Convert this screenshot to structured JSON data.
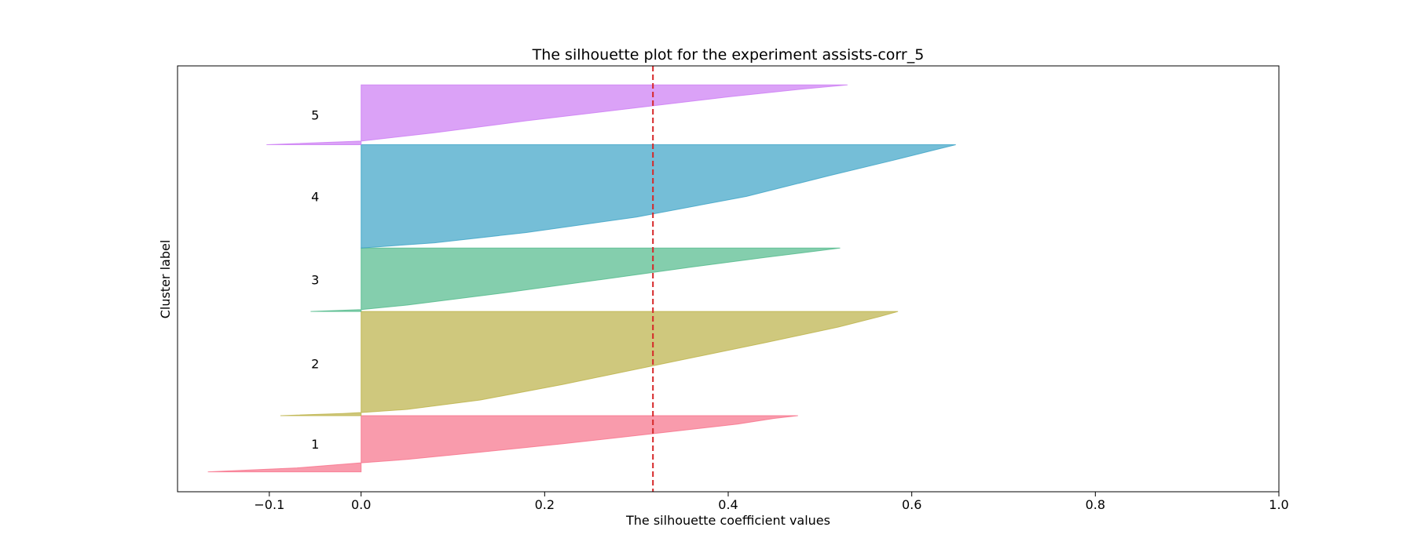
{
  "chart_data": {
    "type": "area",
    "title": "The silhouette plot for the experiment assists-corr_5",
    "xlabel": "The silhouette coefficient values",
    "ylabel": "Cluster label",
    "xlim": [
      -0.2,
      1.0
    ],
    "xticks": [
      -0.1,
      0.0,
      0.2,
      0.4,
      0.6,
      0.8,
      1.0
    ],
    "xtick_labels": [
      "−0.1",
      "0.0",
      "0.2",
      "0.4",
      "0.6",
      "0.8",
      "1.0"
    ],
    "ylim": [
      0,
      470
    ],
    "average_silhouette": 0.318,
    "average_line_color": "#d62728",
    "grid": false,
    "clusters": [
      {
        "label": "1",
        "color": "#f77189",
        "y_lower": 22,
        "y_upper": 84,
        "profile": [
          [
            0.0,
            -0.167
          ],
          [
            0.07,
            -0.07
          ],
          [
            0.16,
            0.0
          ],
          [
            0.22,
            0.05
          ],
          [
            0.35,
            0.13
          ],
          [
            0.5,
            0.22
          ],
          [
            0.7,
            0.33
          ],
          [
            0.85,
            0.41
          ],
          [
            0.95,
            0.45
          ],
          [
            1.0,
            0.476
          ]
        ]
      },
      {
        "label": "2",
        "color": "#bbb146",
        "y_lower": 84,
        "y_upper": 199,
        "profile": [
          [
            0.0,
            -0.088
          ],
          [
            0.02,
            -0.02
          ],
          [
            0.03,
            0.0
          ],
          [
            0.06,
            0.05
          ],
          [
            0.15,
            0.13
          ],
          [
            0.3,
            0.22
          ],
          [
            0.5,
            0.33
          ],
          [
            0.7,
            0.44
          ],
          [
            0.85,
            0.52
          ],
          [
            0.95,
            0.565
          ],
          [
            1.0,
            0.585
          ]
        ]
      },
      {
        "label": "3",
        "color": "#50b98a",
        "y_lower": 199,
        "y_upper": 269,
        "profile": [
          [
            0.0,
            -0.055
          ],
          [
            0.03,
            0.0
          ],
          [
            0.1,
            0.05
          ],
          [
            0.3,
            0.16
          ],
          [
            0.5,
            0.26
          ],
          [
            0.7,
            0.36
          ],
          [
            0.85,
            0.44
          ],
          [
            0.95,
            0.495
          ],
          [
            1.0,
            0.522
          ]
        ]
      },
      {
        "label": "4",
        "color": "#3ba3c6",
        "y_lower": 269,
        "y_upper": 383,
        "profile": [
          [
            0.0,
            0.0
          ],
          [
            0.05,
            0.08
          ],
          [
            0.15,
            0.18
          ],
          [
            0.3,
            0.3
          ],
          [
            0.5,
            0.42
          ],
          [
            0.7,
            0.51
          ],
          [
            0.85,
            0.58
          ],
          [
            0.95,
            0.625
          ],
          [
            1.0,
            0.648
          ]
        ]
      },
      {
        "label": "5",
        "color": "#cc7af4",
        "y_lower": 383,
        "y_upper": 449,
        "profile": [
          [
            0.0,
            -0.103
          ],
          [
            0.06,
            0.0
          ],
          [
            0.2,
            0.08
          ],
          [
            0.4,
            0.18
          ],
          [
            0.6,
            0.29
          ],
          [
            0.8,
            0.4
          ],
          [
            0.93,
            0.48
          ],
          [
            1.0,
            0.53
          ]
        ]
      }
    ]
  }
}
